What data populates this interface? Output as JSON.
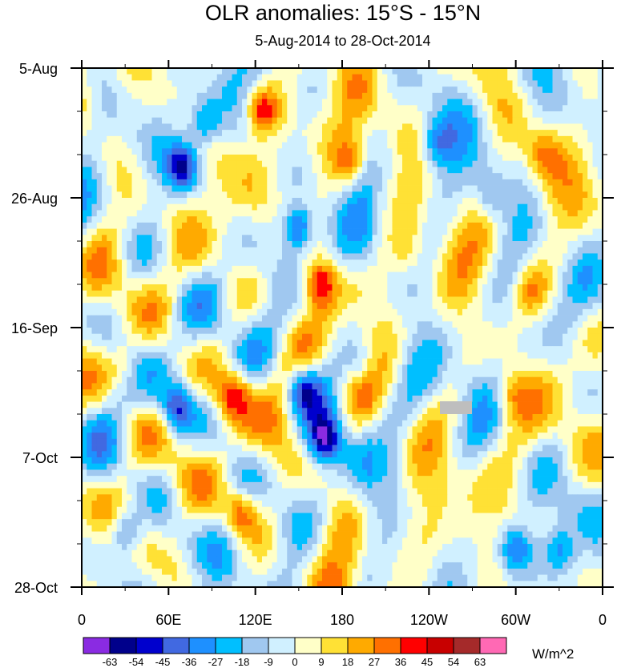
{
  "chart_data": {
    "type": "heatmap",
    "title": "OLR anomalies: 15°S - 15°N",
    "subtitle": "5-Aug-2014 to 28-Oct-2014",
    "xlabel": "",
    "ylabel": "",
    "x_axis": {
      "range": [
        0,
        360
      ],
      "tick_labels": [
        "0",
        "60E",
        "120E",
        "180",
        "120W",
        "60W",
        "0"
      ]
    },
    "y_axis": {
      "range": [
        "5-Aug-2014",
        "28-Oct-2014"
      ],
      "tick_labels": [
        "5-Aug",
        "26-Aug",
        "16-Sep",
        "7-Oct",
        "28-Oct"
      ]
    },
    "colorbar": {
      "units": "W/m^2",
      "levels": [
        "-63",
        "-54",
        "-45",
        "-36",
        "-27",
        "-18",
        "-9",
        "0",
        "9",
        "18",
        "27",
        "36",
        "45",
        "54",
        "63"
      ],
      "colors": [
        "#8a2be2",
        "#00008b",
        "#0000cd",
        "#4169e1",
        "#1e90ff",
        "#00bfff",
        "#a0c8f0",
        "#d0f0ff",
        "#ffffc8",
        "#ffe135",
        "#ffaa00",
        "#ff7000",
        "#ff0000",
        "#c80000",
        "#a52a2a",
        "#ff69b4"
      ]
    },
    "missing_color": "#bebebe",
    "features": [
      {
        "lon": 70,
        "day": 16,
        "value": -50
      },
      {
        "lon": 85,
        "day": 9,
        "value": -30
      },
      {
        "lon": 150,
        "day": 26,
        "value": -45
      },
      {
        "lon": 168,
        "day": 60,
        "value": -50
      },
      {
        "lon": 153,
        "day": 52,
        "value": -40
      },
      {
        "lon": 65,
        "day": 55,
        "value": -40
      },
      {
        "lon": 125,
        "day": 7,
        "value": 40
      },
      {
        "lon": 165,
        "day": 35,
        "value": 45
      },
      {
        "lon": 105,
        "day": 53,
        "value": 36
      },
      {
        "lon": 110,
        "day": 72,
        "value": 36
      },
      {
        "lon": 245,
        "day": 12,
        "value": -35
      },
      {
        "lon": 282,
        "day": 21,
        "value": -30
      },
      {
        "lon": 300,
        "day": 78,
        "value": -45
      },
      {
        "lon": 330,
        "day": 78,
        "value": -36
      },
      {
        "lon": 30,
        "day": 75,
        "value": -36
      },
      {
        "lon": 195,
        "day": 48,
        "value": -27
      },
      {
        "lon": 310,
        "day": 36,
        "value": 27
      },
      {
        "lon": 298,
        "day": 53,
        "value": 27
      },
      {
        "lon": 320,
        "day": 14,
        "value": 27
      },
      {
        "lon": 225,
        "day": 30,
        "value": 18
      },
      {
        "lon": 185,
        "day": 15,
        "value": 27
      },
      {
        "lon": 30,
        "day": 48,
        "value": 18
      }
    ]
  }
}
